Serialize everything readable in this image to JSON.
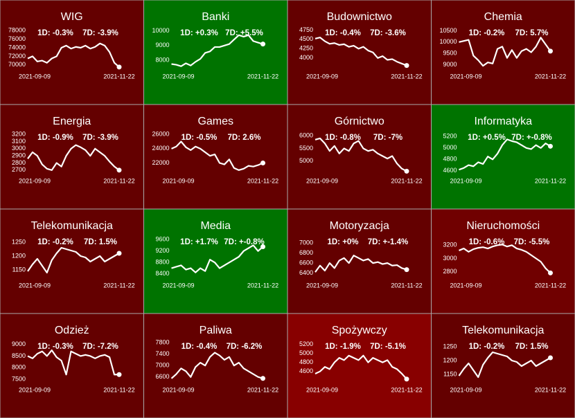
{
  "chart_data": [
    {
      "type": "line",
      "title": "WIG",
      "annotations": [
        "1D: -0.3%",
        "7D: -3.9%"
      ],
      "background": "#640000",
      "color": "#ffffff",
      "categories": [
        "2021-09-09",
        null,
        null,
        null,
        null,
        null,
        null,
        null,
        null,
        null,
        null,
        null,
        null,
        null,
        null,
        null,
        null,
        null,
        null,
        "2021-11-22"
      ],
      "values": [
        71500,
        72000,
        70800,
        71000,
        70500,
        71500,
        72000,
        74000,
        74500,
        73800,
        74200,
        74000,
        74500,
        73800,
        74200,
        75000,
        74500,
        73000,
        70500,
        69500
      ],
      "ylim": [
        69000,
        79000
      ],
      "yticks": [
        70000,
        72000,
        74000,
        76000,
        78000
      ]
    },
    {
      "type": "line",
      "title": "Banki",
      "annotations": [
        "1D: +0.3%",
        "7D: +5.5%"
      ],
      "background": "#007300",
      "color": "#ffffff",
      "categories": [
        "2021-09-09",
        null,
        null,
        null,
        null,
        null,
        null,
        null,
        null,
        null,
        null,
        null,
        null,
        null,
        null,
        null,
        null,
        null,
        null,
        "2021-11-22"
      ],
      "values": [
        7750,
        7700,
        7600,
        7800,
        7650,
        7900,
        8100,
        8500,
        8600,
        8900,
        8900,
        9000,
        9100,
        9400,
        9700,
        9600,
        9700,
        9300,
        9200,
        9100
      ],
      "ylim": [
        7400,
        10300
      ],
      "yticks": [
        8000,
        9000,
        10000
      ]
    },
    {
      "type": "line",
      "title": "Budownictwo",
      "annotations": [
        "1D: -0.4%",
        "7D: -3.6%"
      ],
      "background": "#640000",
      "color": "#ffffff",
      "categories": [
        "2021-09-09",
        null,
        null,
        null,
        null,
        null,
        null,
        null,
        null,
        null,
        null,
        null,
        null,
        null,
        null,
        null,
        null,
        null,
        null,
        "2021-11-22"
      ],
      "values": [
        4520,
        4550,
        4450,
        4380,
        4400,
        4350,
        4370,
        4300,
        4330,
        4250,
        4300,
        4200,
        4150,
        4000,
        4050,
        3950,
        3970,
        3900,
        3850,
        3800
      ],
      "ylim": [
        3700,
        4850
      ],
      "yticks": [
        4000,
        4250,
        4500,
        4750
      ]
    },
    {
      "type": "line",
      "title": "Chemia",
      "annotations": [
        "1D: -0.2%",
        "7D: 5.7%"
      ],
      "background": "#640000",
      "color": "#ffffff",
      "categories": [
        "2021-09-09",
        null,
        null,
        null,
        null,
        null,
        null,
        null,
        null,
        null,
        null,
        null,
        null,
        null,
        null,
        null,
        null,
        null,
        null,
        "2021-11-22"
      ],
      "values": [
        10000,
        10050,
        10100,
        9400,
        9200,
        8950,
        9100,
        9050,
        9700,
        9800,
        9300,
        9650,
        9300,
        9600,
        9700,
        9550,
        9800,
        10200,
        9900,
        9600
      ],
      "ylim": [
        8800,
        10700
      ],
      "yticks": [
        9000,
        9500,
        10000,
        10500
      ]
    },
    {
      "type": "line",
      "title": "Energia",
      "annotations": [
        "1D: -0.9%",
        "7D: -3.9%"
      ],
      "background": "#640000",
      "color": "#ffffff",
      "categories": [
        "2021-09-09",
        null,
        null,
        null,
        null,
        null,
        null,
        null,
        null,
        null,
        null,
        null,
        null,
        null,
        null,
        null,
        null,
        null,
        null,
        "2021-11-22"
      ],
      "values": [
        2860,
        2950,
        2900,
        2780,
        2720,
        2700,
        2800,
        2750,
        2900,
        3000,
        3050,
        3020,
        2980,
        2900,
        3000,
        2950,
        2900,
        2820,
        2750,
        2700
      ],
      "ylim": [
        2650,
        3250
      ],
      "yticks": [
        2700,
        2800,
        2900,
        3000,
        3100,
        3200
      ]
    },
    {
      "type": "line",
      "title": "Games",
      "annotations": [
        "1D: -0.5%",
        "7D: 2.6%"
      ],
      "background": "#640000",
      "color": "#ffffff",
      "categories": [
        "2021-09-09",
        null,
        null,
        null,
        null,
        null,
        null,
        null,
        null,
        null,
        null,
        null,
        null,
        null,
        null,
        null,
        null,
        null,
        null,
        "2021-11-22"
      ],
      "values": [
        24000,
        24300,
        25000,
        24200,
        23800,
        24300,
        24000,
        23500,
        23000,
        23200,
        22000,
        21800,
        22500,
        21300,
        21000,
        21200,
        21600,
        21500,
        21700,
        22000
      ],
      "ylim": [
        20500,
        26500
      ],
      "yticks": [
        22000,
        24000,
        26000
      ]
    },
    {
      "type": "line",
      "title": "Górnictwo",
      "annotations": [
        "1D: -0.8%",
        "7D: -7%"
      ],
      "background": "#640000",
      "color": "#ffffff",
      "categories": [
        "2021-09-09",
        null,
        null,
        null,
        null,
        null,
        null,
        null,
        null,
        null,
        null,
        null,
        null,
        null,
        null,
        null,
        null,
        null,
        null,
        "2021-11-22"
      ],
      "values": [
        5850,
        5900,
        5700,
        5400,
        5600,
        5300,
        5500,
        5400,
        5700,
        5800,
        5500,
        5400,
        5450,
        5300,
        5200,
        5100,
        5200,
        4900,
        4700,
        4600
      ],
      "ylim": [
        4500,
        6200
      ],
      "yticks": [
        5000,
        5500,
        6000
      ]
    },
    {
      "type": "line",
      "title": "Informatyka",
      "annotations": [
        "1D: +0.5%",
        "7D: +-0.8%"
      ],
      "background": "#007300",
      "color": "#ffffff",
      "categories": [
        "2021-09-09",
        null,
        null,
        null,
        null,
        null,
        null,
        null,
        null,
        null,
        null,
        null,
        null,
        null,
        null,
        null,
        null,
        null,
        null,
        "2021-11-22"
      ],
      "values": [
        4620,
        4650,
        4700,
        4680,
        4750,
        4720,
        4850,
        4800,
        4900,
        5050,
        5150,
        5120,
        5100,
        5050,
        5000,
        4980,
        5050,
        5000,
        5080,
        5030
      ],
      "ylim": [
        4550,
        5300
      ],
      "yticks": [
        4600,
        4800,
        5000,
        5200
      ]
    },
    {
      "type": "line",
      "title": "Telekomunikacja",
      "annotations": [
        "1D: -0.2%",
        "7D: 1.5%"
      ],
      "background": "#640000",
      "color": "#ffffff",
      "categories": [
        "2021-09-09",
        null,
        null,
        null,
        null,
        null,
        null,
        null,
        null,
        null,
        null,
        null,
        null,
        null,
        null,
        null,
        null,
        null,
        null,
        "2021-11-22"
      ],
      "values": [
        1145,
        1170,
        1190,
        1165,
        1140,
        1185,
        1210,
        1230,
        1225,
        1220,
        1215,
        1200,
        1195,
        1180,
        1190,
        1200,
        1180,
        1190,
        1200,
        1210
      ],
      "ylim": [
        1120,
        1275
      ],
      "yticks": [
        1150,
        1200,
        1250
      ]
    },
    {
      "type": "line",
      "title": "Media",
      "annotations": [
        "1D: +1.7%",
        "7D: +-0.8%"
      ],
      "background": "#007300",
      "color": "#ffffff",
      "categories": [
        "2021-09-09",
        null,
        null,
        null,
        null,
        null,
        null,
        null,
        null,
        null,
        null,
        null,
        null,
        null,
        null,
        null,
        null,
        null,
        null,
        "2021-11-22"
      ],
      "values": [
        8600,
        8650,
        8700,
        8550,
        8600,
        8450,
        8600,
        8500,
        8900,
        8800,
        8600,
        8700,
        8800,
        8900,
        9000,
        9200,
        9300,
        9400,
        9200,
        9350
      ],
      "ylim": [
        8250,
        9750
      ],
      "yticks": [
        8400,
        8800,
        9200,
        9600
      ]
    },
    {
      "type": "line",
      "title": "Motoryzacja",
      "annotations": [
        "1D: +0%",
        "7D: +-1.4%"
      ],
      "background": "#640000",
      "color": "#ffffff",
      "categories": [
        "2021-09-09",
        null,
        null,
        null,
        null,
        null,
        null,
        null,
        null,
        null,
        null,
        null,
        null,
        null,
        null,
        null,
        null,
        null,
        null,
        "2021-11-22"
      ],
      "values": [
        6420,
        6550,
        6450,
        6600,
        6500,
        6650,
        6700,
        6600,
        6750,
        6700,
        6650,
        6680,
        6600,
        6620,
        6580,
        6600,
        6550,
        6560,
        6500,
        6470
      ],
      "ylim": [
        6300,
        7150
      ],
      "yticks": [
        6400,
        6600,
        6800,
        7000
      ]
    },
    {
      "type": "line",
      "title": "Nieruchomości",
      "annotations": [
        "1D: -0.6%",
        "7D: -5.5%"
      ],
      "background": "#700000",
      "color": "#ffffff",
      "categories": [
        "2021-09-09",
        null,
        null,
        null,
        null,
        null,
        null,
        null,
        null,
        null,
        null,
        null,
        null,
        null,
        null,
        null,
        null,
        null,
        null,
        "2021-11-22"
      ],
      "values": [
        3120,
        3150,
        3100,
        3140,
        3160,
        3170,
        3150,
        3180,
        3200,
        3210,
        3180,
        3200,
        3150,
        3130,
        3100,
        3050,
        3000,
        2950,
        2850,
        2780
      ],
      "ylim": [
        2700,
        3350
      ],
      "yticks": [
        2800,
        3000,
        3200
      ]
    },
    {
      "type": "line",
      "title": "Odzież",
      "annotations": [
        "1D: -0.3%",
        "7D: -7.2%"
      ],
      "background": "#640000",
      "color": "#ffffff",
      "categories": [
        "2021-09-09",
        null,
        null,
        null,
        null,
        null,
        null,
        null,
        null,
        null,
        null,
        null,
        null,
        null,
        null,
        null,
        null,
        null,
        null,
        "2021-11-22"
      ],
      "values": [
        8500,
        8400,
        8600,
        8700,
        8500,
        8750,
        8450,
        8300,
        7700,
        8700,
        8600,
        8500,
        8550,
        8500,
        8400,
        8500,
        8550,
        8450,
        7700,
        7700
      ],
      "ylim": [
        7350,
        9200
      ],
      "yticks": [
        7500,
        8000,
        8500,
        9000
      ]
    },
    {
      "type": "line",
      "title": "Paliwa",
      "annotations": [
        "1D: -0.4%",
        "7D: -6.2%"
      ],
      "background": "#640000",
      "color": "#ffffff",
      "categories": [
        "2021-09-09",
        null,
        null,
        null,
        null,
        null,
        null,
        null,
        null,
        null,
        null,
        null,
        null,
        null,
        null,
        null,
        null,
        null,
        null,
        "2021-11-22"
      ],
      "values": [
        6550,
        6700,
        6900,
        6800,
        6600,
        6950,
        7100,
        7000,
        7300,
        7450,
        7350,
        7200,
        7300,
        7000,
        7100,
        6900,
        6800,
        6700,
        6600,
        6550
      ],
      "ylim": [
        6400,
        7900
      ],
      "yticks": [
        6600,
        7000,
        7400,
        7800
      ]
    },
    {
      "type": "line",
      "title": "Spożywczy",
      "annotations": [
        "1D: -1.9%",
        "7D: -5.1%"
      ],
      "background": "#880000",
      "color": "#ffffff",
      "categories": [
        "2021-09-09",
        null,
        null,
        null,
        null,
        null,
        null,
        null,
        null,
        null,
        null,
        null,
        null,
        null,
        null,
        null,
        null,
        null,
        null,
        "2021-11-22"
      ],
      "values": [
        4550,
        4600,
        4700,
        4650,
        4800,
        4900,
        4850,
        4950,
        4900,
        4850,
        4950,
        4800,
        4900,
        4850,
        4800,
        4850,
        4700,
        4650,
        4550,
        4430
      ],
      "ylim": [
        4350,
        5300
      ],
      "yticks": [
        4600,
        4800,
        5000,
        5200
      ]
    },
    {
      "type": "line",
      "title": "Telekomunikacja",
      "annotations": [
        "1D: -0.2%",
        "7D: 1.5%"
      ],
      "background": "#640000",
      "color": "#ffffff",
      "categories": [
        "2021-09-09",
        null,
        null,
        null,
        null,
        null,
        null,
        null,
        null,
        null,
        null,
        null,
        null,
        null,
        null,
        null,
        null,
        null,
        null,
        "2021-11-22"
      ],
      "values": [
        1145,
        1170,
        1190,
        1165,
        1140,
        1185,
        1210,
        1230,
        1225,
        1220,
        1215,
        1200,
        1195,
        1180,
        1190,
        1200,
        1180,
        1190,
        1200,
        1210
      ],
      "ylim": [
        1120,
        1275
      ],
      "yticks": [
        1150,
        1200,
        1250
      ]
    }
  ]
}
